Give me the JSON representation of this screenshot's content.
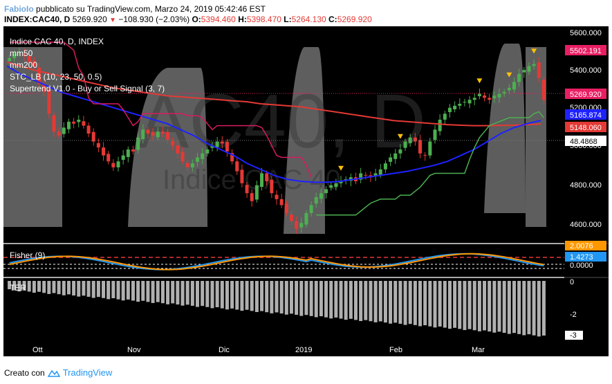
{
  "header": {
    "author": "FabioIo",
    "published_text": "pubblicato su TradingView.com, Marzo 24, 2019 05:42:46 EST",
    "symbol": "INDEX:CAC40, D",
    "last": "5269.920",
    "change_icon": "down-triangle-icon",
    "change": "−108.930 (−2.03%)",
    "open_label": "O:",
    "open": "5394.460",
    "high_label": "H:",
    "high": "5398.470",
    "low_label": "L:",
    "low": "5264.130",
    "close_label": "C:",
    "close": "5269.920"
  },
  "legend": {
    "title": "Indice CAC 40, D, INDEX",
    "items": [
      "mm50",
      "mm200",
      "STC_LB (10, 23, 50, 0.5)",
      "Supertrend V1.0 - Buy or Sell Signal (3, 7)"
    ]
  },
  "watermark": {
    "big": "AC40, D",
    "small": "Indice CAC 40"
  },
  "price_axis": {
    "ticks": [
      "5600.000",
      "5400.000",
      "5200.000",
      "5000.000",
      "4800.000",
      "4600.000"
    ],
    "badges": [
      {
        "text": "5502.191",
        "color": "#e91e63"
      },
      {
        "text": "5269.920",
        "color": "#e91e63"
      },
      {
        "text": "5165.874",
        "color": "#1e22ff"
      },
      {
        "text": "5148.060",
        "color": "#e53935"
      },
      {
        "text": "48.4868",
        "color": "#ffffff"
      }
    ]
  },
  "fisher": {
    "label": "Fisher (9)",
    "ticks": [
      "0.0000"
    ],
    "badges": [
      {
        "text": "2.0076",
        "color": "#ff9800"
      },
      {
        "text": "1.4273",
        "color": "#2196f3"
      }
    ]
  },
  "ter": {
    "label": "TER",
    "ticks": [
      "0",
      "-2"
    ],
    "badges": [
      {
        "text": "-3",
        "color": "#ffffff"
      }
    ]
  },
  "time_axis": {
    "labels": [
      "Ott",
      "Nov",
      "Dic",
      "2019",
      "Feb",
      "Mar"
    ]
  },
  "footer": {
    "created_with": "Creato con",
    "brand": "TradingView",
    "logo_icon": "tradingview-logo-icon"
  },
  "chart_data": {
    "type": "candlestick",
    "title": "Indice CAC 40, D, INDEX",
    "y_range": [
      4550,
      5640
    ],
    "series_names": [
      "mm50",
      "mm200",
      "STC_LB (10, 23, 50, 0.5)",
      "Supertrend V1.0 - Buy or Sell Signal (3, 7)"
    ],
    "closes": [
      5480,
      5500,
      5510,
      5490,
      5460,
      5440,
      5350,
      5310,
      5200,
      5110,
      5090,
      5130,
      5160,
      5150,
      5170,
      5140,
      5100,
      5060,
      5030,
      4990,
      4960,
      4930,
      4960,
      4990,
      5020,
      5010,
      5080,
      5120,
      5100,
      5090,
      5110,
      5100,
      5070,
      5040,
      5000,
      4960,
      4930,
      4950,
      4980,
      5000,
      5020,
      5040,
      5060,
      5050,
      5010,
      4960,
      4910,
      4850,
      4800,
      4760,
      4840,
      4900,
      4860,
      4800,
      4770,
      4740,
      4700,
      4660,
      4620,
      4650,
      4700,
      4740,
      4780,
      4800,
      4820,
      4840,
      4850,
      4860,
      4870,
      4880,
      4860,
      4900,
      4890,
      4880,
      4900,
      4920,
      4950,
      4980,
      5000,
      5020,
      5060,
      5080,
      5060,
      5000,
      4990,
      5060,
      5120,
      5170,
      5200,
      5230,
      5240,
      5250,
      5260,
      5270,
      5280,
      5300,
      5280,
      5270,
      5290,
      5300,
      5310,
      5330,
      5360,
      5400,
      5420,
      5440,
      5450,
      5380,
      5270
    ],
    "mm200": [
      5460,
      5440,
      5420,
      5405,
      5390,
      5375,
      5360,
      5345,
      5330,
      5320,
      5310,
      5300,
      5290,
      5285,
      5280,
      5275,
      5270,
      5265,
      5260,
      5250,
      5245,
      5240,
      5235,
      5225,
      5215,
      5205,
      5195,
      5185,
      5175,
      5165,
      5160,
      5155,
      5150,
      5145,
      5142,
      5140,
      5140,
      5141,
      5142,
      5145,
      5148
    ],
    "mm50": [
      5440,
      5400,
      5370,
      5340,
      5310,
      5290,
      5270,
      5250,
      5230,
      5210,
      5190,
      5170,
      5150,
      5120,
      5090,
      5050,
      5020,
      4990,
      4950,
      4920,
      4890,
      4870,
      4860,
      4855,
      4855,
      4860,
      4870,
      4880,
      4890,
      4900,
      4910,
      4925,
      4940,
      4960,
      4990,
      5020,
      5060,
      5100,
      5130,
      5150,
      5166
    ]
  }
}
